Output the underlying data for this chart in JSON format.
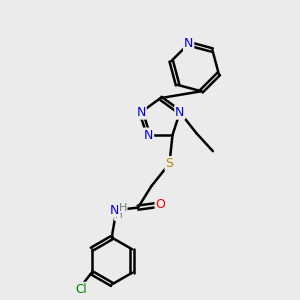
{
  "background_color": "#ebebeb",
  "bond_color": "#000000",
  "bond_width": 1.8,
  "figsize": [
    3.0,
    3.0
  ],
  "dpi": 100,
  "atoms": {
    "N_blue": "#0000ee",
    "O_red": "#ff0000",
    "S_yellow": "#b8860b",
    "Cl_green": "#008000",
    "H_gray": "#777777"
  },
  "layout": {
    "xlim": [
      0,
      10
    ],
    "ylim": [
      0,
      10
    ]
  }
}
